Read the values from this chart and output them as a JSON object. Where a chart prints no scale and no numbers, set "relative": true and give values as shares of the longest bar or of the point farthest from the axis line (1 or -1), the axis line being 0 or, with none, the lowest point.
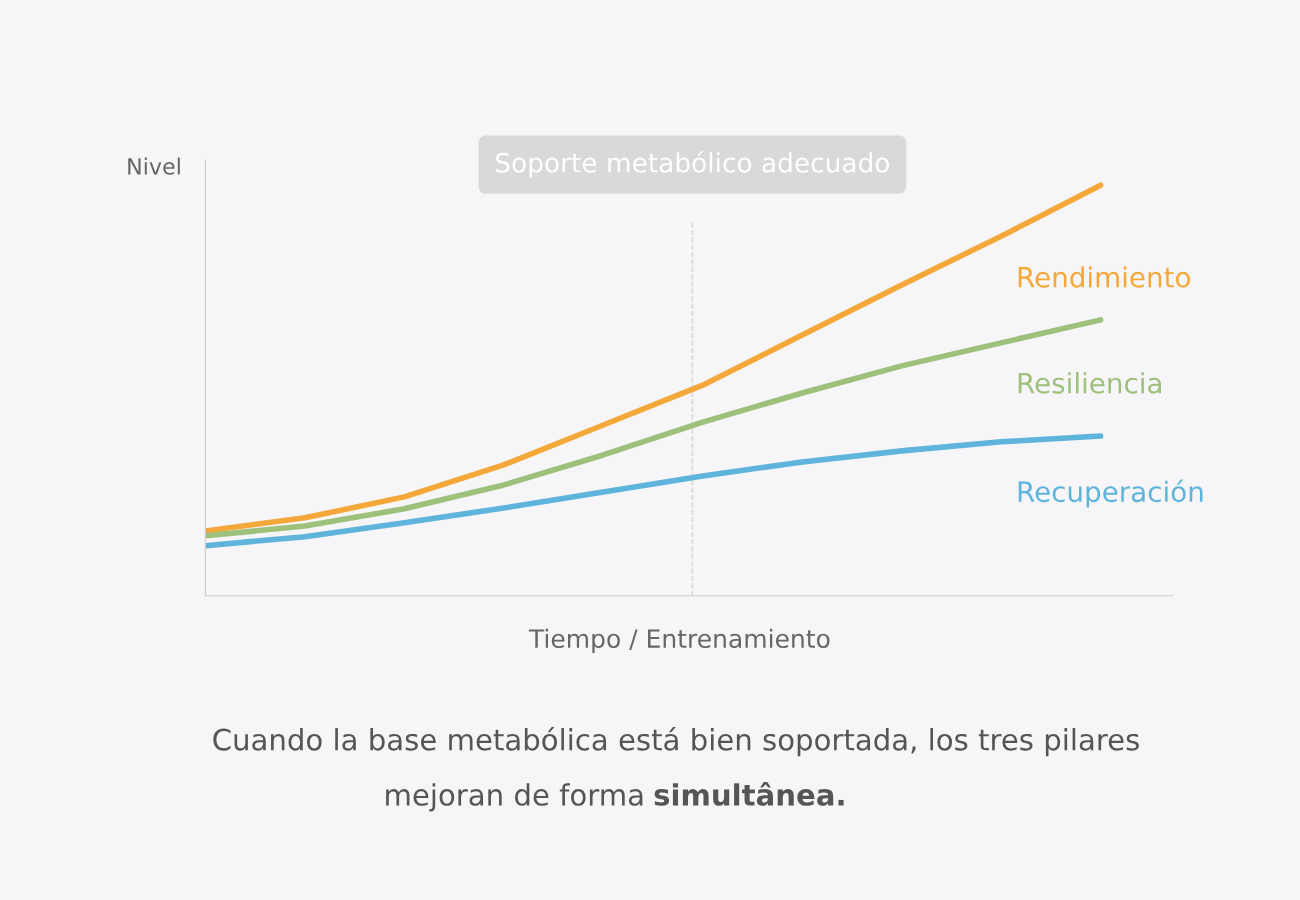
{
  "chart_data": {
    "type": "line",
    "relative": true,
    "ylabel": "Nivel",
    "xlabel": "Tiempo / Entrenamiento",
    "categories": [
      null,
      null,
      null,
      null,
      null,
      null,
      null,
      null,
      null,
      null
    ],
    "series": [
      {
        "name": "Rendimiento",
        "color": "#f5a83a",
        "values": [
          0.158,
          0.19,
          0.241,
          0.319,
          0.416,
          0.513,
          0.635,
          0.757,
          0.876,
          1
        ]
      },
      {
        "name": "Resiliencia",
        "color": "#9dc07a",
        "values": [
          0.146,
          0.17,
          0.212,
          0.27,
          0.343,
          0.423,
          0.494,
          0.56,
          0.616,
          0.672
        ]
      },
      {
        "name": "Recuperación",
        "color": "#5fb4dc",
        "values": [
          0.122,
          0.144,
          0.178,
          0.214,
          0.253,
          0.292,
          0.326,
          0.353,
          0.375,
          0.389
        ]
      }
    ],
    "annotations": [
      "Cuando la base metabólica está bien soportada, los tres pilares",
      "mejoran de forma",
      "simultânea.",
      "Soporte metabólico adecuado"
    ],
    "legend": false,
    "line_style": "solid",
    "marker": "none"
  }
}
